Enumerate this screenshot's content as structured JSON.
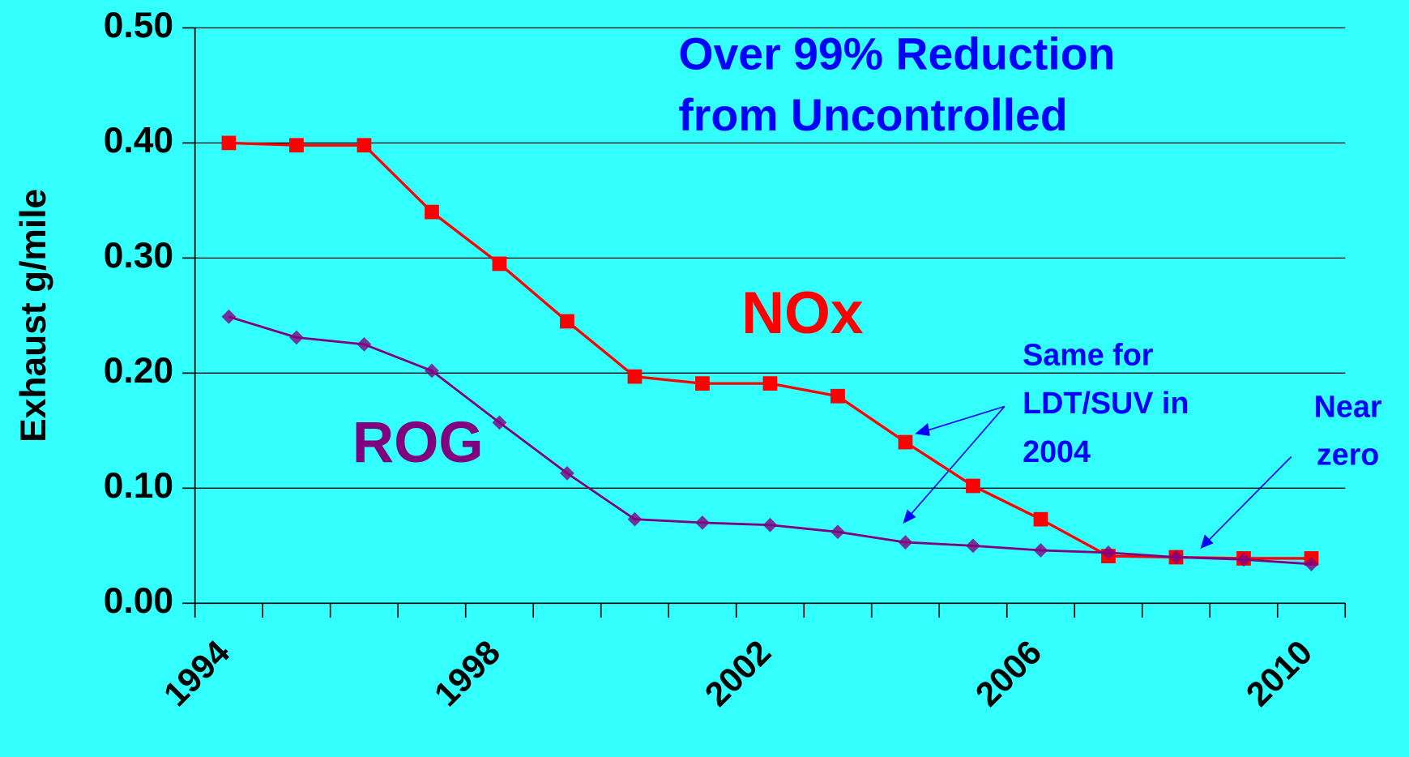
{
  "chart_data": {
    "type": "line",
    "y_label": "Exhaust g/mile",
    "categories": [
      "1994",
      null,
      null,
      null,
      "1998",
      null,
      null,
      null,
      "2002",
      null,
      null,
      null,
      "2006",
      null,
      null,
      null,
      "2010"
    ],
    "series": [
      {
        "name": "NOx",
        "color": "#ff0000",
        "marker": "square",
        "values": [
          0.4,
          0.398,
          0.398,
          0.34,
          0.295,
          0.245,
          0.197,
          0.191,
          0.191,
          0.18,
          0.14,
          0.102,
          0.073,
          0.041,
          0.04,
          0.039,
          0.039
        ]
      },
      {
        "name": "ROG",
        "color": "#800080",
        "marker": "diamond",
        "values": [
          0.249,
          0.231,
          0.225,
          0.202,
          0.157,
          0.113,
          0.073,
          0.07,
          0.068,
          0.062,
          0.053,
          0.05,
          0.046,
          0.044,
          0.04,
          0.038,
          0.034
        ]
      }
    ],
    "ylim": [
      0,
      0.5
    ],
    "yticks": [
      {
        "value": 0,
        "label": "0.00"
      },
      {
        "value": 0.1,
        "label": "0.10"
      },
      {
        "value": 0.2,
        "label": "0.20"
      },
      {
        "value": 0.3,
        "label": "0.30"
      },
      {
        "value": 0.4,
        "label": "0.40"
      },
      {
        "value": 0.5,
        "label": "0.50"
      }
    ],
    "grid": true,
    "annotations": [
      {
        "lines": [
          "Over 99% Reduction",
          "from Uncontrolled"
        ],
        "color": "#0000ff"
      },
      {
        "lines": [
          "Same for",
          "LDT/SUV in",
          "2004"
        ],
        "color": "#0000ff"
      },
      {
        "lines": [
          "Near",
          "zero"
        ],
        "color": "#0000ff"
      }
    ]
  }
}
